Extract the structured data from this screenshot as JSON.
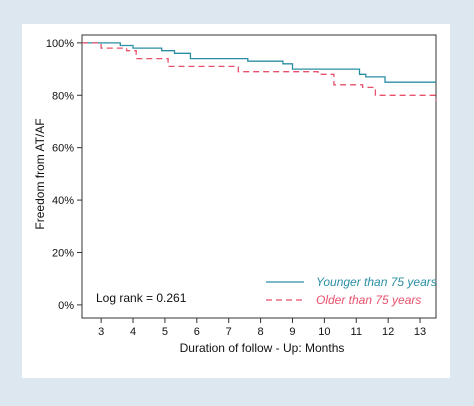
{
  "chart_data": {
    "type": "line",
    "step": true,
    "title": "",
    "xlabel": "Duration of follow - Up: Months",
    "ylabel": "Freedom from AT/AF",
    "xlim": [
      2.4,
      13.5
    ],
    "ylim": [
      -5,
      103
    ],
    "x_ticks": [
      3,
      4,
      5,
      6,
      7,
      8,
      9,
      10,
      11,
      12,
      13
    ],
    "x_tick_labels": [
      "3",
      "4",
      "5",
      "6",
      "7",
      "8",
      "9",
      "10",
      "11",
      "12",
      "13"
    ],
    "y_ticks": [
      0,
      20,
      40,
      60,
      80,
      100
    ],
    "y_tick_labels": [
      "0%",
      "20%",
      "40%",
      "60%",
      "80%",
      "100%"
    ],
    "grid": false,
    "legend_position": "bottom-right",
    "annotation": "Log rank = 0.261",
    "series": [
      {
        "name": "Younger than 75 years",
        "color": "#2a8fa3",
        "dash": "solid",
        "x": [
          2.4,
          3.6,
          4.0,
          4.9,
          5.3,
          5.8,
          7.6,
          8.7,
          9.0,
          11.1,
          11.3,
          11.9,
          13.5
        ],
        "y": [
          100,
          99,
          98,
          97,
          96,
          94,
          93,
          92,
          90,
          88,
          87,
          85,
          85
        ]
      },
      {
        "name": "Older than 75 years",
        "color": "#e8506b",
        "dash": "dashed",
        "x": [
          2.4,
          3.0,
          3.8,
          4.1,
          5.1,
          7.3,
          9.8,
          10.3,
          11.2,
          11.6,
          13.5
        ],
        "y": [
          100,
          98,
          97,
          94,
          91,
          89,
          88,
          84,
          83,
          80,
          78
        ]
      }
    ]
  }
}
